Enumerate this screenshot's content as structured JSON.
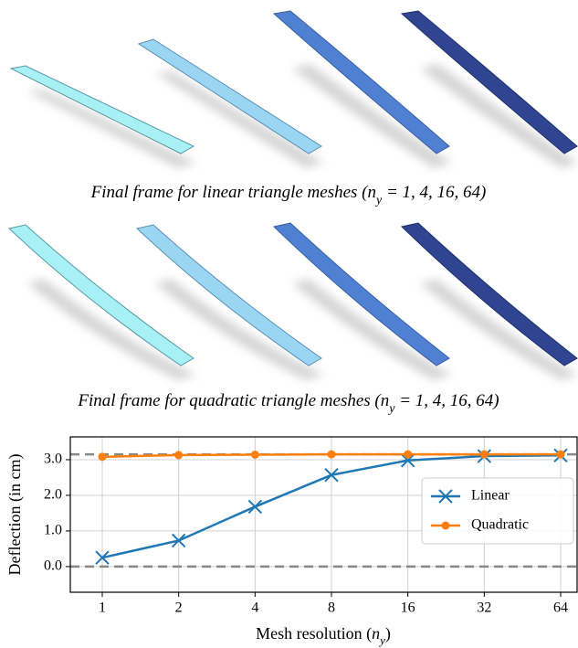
{
  "captions": [
    {
      "prefix": "Final frame for linear triangle meshes (",
      "var": "n",
      "sub": "y",
      "suffix": " = 1, 4, 16, 64)"
    },
    {
      "prefix": "Final frame for quadratic triangle meshes (",
      "var": "n",
      "sub": "y",
      "suffix": " = 1, 4, 16, 64)"
    }
  ],
  "chart_data": {
    "type": "line",
    "categories": [
      "1",
      "2",
      "4",
      "8",
      "16",
      "32",
      "64"
    ],
    "series": [
      {
        "name": "Linear",
        "color": "#1f77b4",
        "marker": "x",
        "values": [
          0.25,
          0.73,
          1.68,
          2.57,
          2.98,
          3.1,
          3.12
        ]
      },
      {
        "name": "Quadratic",
        "color": "#ff7f0e",
        "marker": "o",
        "values": [
          3.08,
          3.13,
          3.14,
          3.15,
          3.15,
          3.15,
          3.15
        ]
      }
    ],
    "ylim": [
      -0.72,
      3.64
    ],
    "yticks": [
      {
        "value": 0,
        "label": "0.0"
      },
      {
        "value": 1,
        "label": "1.0"
      },
      {
        "value": 2,
        "label": "2.0"
      },
      {
        "value": 3,
        "label": "3.0"
      }
    ],
    "grid": true,
    "reference_lines": [
      0,
      3.15
    ],
    "x_label": {
      "prefix": "Mesh resolution (",
      "var": "n",
      "sub": "y",
      "suffix": ")"
    },
    "y_label": "Deflection (in cm)",
    "legend": "center right"
  }
}
